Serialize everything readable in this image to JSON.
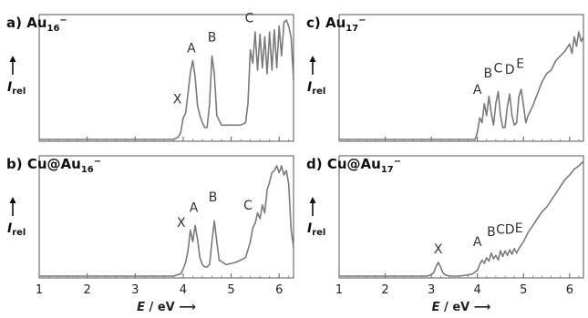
{
  "chart_data": [
    {
      "id": "a",
      "type": "line",
      "panel_label": "a)",
      "cluster_base": "Au",
      "cluster_sub": "16",
      "cluster_sup": "−",
      "ylabel": "I",
      "ylabel_sub": "rel",
      "xlim": [
        1,
        6.3
      ],
      "x_ticks": [
        "1",
        "2",
        "3",
        "4",
        "5",
        "6"
      ],
      "line_color": "#7a7a7a",
      "peak_labels": [
        {
          "text": "X",
          "x": 3.88,
          "y": 0.3
        },
        {
          "text": "A",
          "x": 4.17,
          "y": 0.73
        },
        {
          "text": "B",
          "x": 4.6,
          "y": 0.82
        },
        {
          "text": "C",
          "x": 5.38,
          "y": 0.98
        }
      ],
      "x": [
        1.0,
        3.8,
        3.9,
        3.95,
        4.0,
        4.05,
        4.1,
        4.15,
        4.2,
        4.25,
        4.3,
        4.35,
        4.4,
        4.45,
        4.5,
        4.55,
        4.6,
        4.65,
        4.7,
        4.8,
        5.0,
        5.2,
        5.3,
        5.35,
        5.4,
        5.45,
        5.5,
        5.55,
        5.6,
        5.65,
        5.7,
        5.75,
        5.8,
        5.85,
        5.9,
        5.95,
        6.0,
        6.05,
        6.1,
        6.15,
        6.2,
        6.25,
        6.3
      ],
      "y": [
        0.0,
        0.0,
        0.02,
        0.06,
        0.18,
        0.22,
        0.38,
        0.56,
        0.66,
        0.52,
        0.28,
        0.2,
        0.14,
        0.1,
        0.1,
        0.3,
        0.7,
        0.55,
        0.2,
        0.12,
        0.12,
        0.12,
        0.14,
        0.3,
        0.75,
        0.64,
        0.9,
        0.58,
        0.88,
        0.6,
        0.86,
        0.55,
        0.9,
        0.58,
        0.92,
        0.6,
        0.95,
        0.7,
        0.98,
        1.0,
        0.95,
        0.85,
        0.5
      ]
    },
    {
      "id": "b",
      "type": "line",
      "panel_label": "b)",
      "cluster_base": "Cu@Au",
      "cluster_sub": "16",
      "cluster_sup": "−",
      "ylabel": "I",
      "ylabel_sub": "rel",
      "xlim": [
        1,
        6.3
      ],
      "x_ticks": [
        "1",
        "2",
        "3",
        "4",
        "5",
        "6"
      ],
      "line_color": "#7a7a7a",
      "peak_labels": [
        {
          "text": "X",
          "x": 3.96,
          "y": 0.43
        },
        {
          "text": "A",
          "x": 4.22,
          "y": 0.56
        },
        {
          "text": "B",
          "x": 4.62,
          "y": 0.65
        },
        {
          "text": "C",
          "x": 5.35,
          "y": 0.58
        }
      ],
      "x": [
        1.0,
        3.8,
        3.95,
        4.0,
        4.05,
        4.1,
        4.15,
        4.2,
        4.25,
        4.3,
        4.35,
        4.4,
        4.45,
        4.5,
        4.55,
        4.6,
        4.65,
        4.7,
        4.75,
        4.9,
        5.1,
        5.3,
        5.4,
        5.45,
        5.5,
        5.55,
        5.6,
        5.65,
        5.7,
        5.75,
        5.8,
        5.85,
        5.9,
        5.95,
        6.0,
        6.05,
        6.1,
        6.15,
        6.2,
        6.25,
        6.3
      ],
      "y": [
        0.0,
        0.0,
        0.02,
        0.06,
        0.12,
        0.22,
        0.4,
        0.3,
        0.44,
        0.32,
        0.16,
        0.1,
        0.08,
        0.08,
        0.1,
        0.3,
        0.48,
        0.3,
        0.14,
        0.1,
        0.12,
        0.16,
        0.3,
        0.42,
        0.46,
        0.55,
        0.5,
        0.62,
        0.55,
        0.75,
        0.82,
        0.9,
        0.92,
        0.96,
        0.9,
        0.96,
        0.88,
        0.92,
        0.8,
        0.4,
        0.25
      ]
    },
    {
      "id": "c",
      "type": "line",
      "panel_label": "c)",
      "cluster_base": "Au",
      "cluster_sub": "17",
      "cluster_sup": "−",
      "ylabel": "I",
      "ylabel_sub": "rel",
      "xlim": [
        1,
        6.3
      ],
      "x_ticks": [
        "1",
        "2",
        "3",
        "4",
        "5",
        "6"
      ],
      "line_color": "#7a7a7a",
      "peak_labels": [
        {
          "text": "A",
          "x": 4.0,
          "y": 0.38
        },
        {
          "text": "B",
          "x": 4.23,
          "y": 0.52
        },
        {
          "text": "C",
          "x": 4.45,
          "y": 0.56
        },
        {
          "text": "D",
          "x": 4.7,
          "y": 0.55
        },
        {
          "text": "E",
          "x": 4.93,
          "y": 0.6
        }
      ],
      "x": [
        1.0,
        3.95,
        4.0,
        4.05,
        4.1,
        4.15,
        4.2,
        4.25,
        4.3,
        4.35,
        4.4,
        4.45,
        4.5,
        4.55,
        4.6,
        4.65,
        4.7,
        4.75,
        4.8,
        4.85,
        4.9,
        4.95,
        5.0,
        5.05,
        5.1,
        5.2,
        5.3,
        5.4,
        5.5,
        5.6,
        5.7,
        5.8,
        5.9,
        6.0,
        6.05,
        6.1,
        6.15,
        6.2,
        6.25,
        6.3
      ],
      "y": [
        0.0,
        0.0,
        0.06,
        0.18,
        0.14,
        0.3,
        0.2,
        0.36,
        0.22,
        0.12,
        0.3,
        0.4,
        0.2,
        0.1,
        0.1,
        0.28,
        0.38,
        0.2,
        0.12,
        0.14,
        0.36,
        0.42,
        0.28,
        0.14,
        0.2,
        0.28,
        0.38,
        0.48,
        0.55,
        0.58,
        0.66,
        0.7,
        0.74,
        0.8,
        0.72,
        0.86,
        0.78,
        0.9,
        0.82,
        0.86
      ]
    },
    {
      "id": "d",
      "type": "line",
      "panel_label": "d)",
      "cluster_base": "Cu@Au",
      "cluster_sub": "17",
      "cluster_sup": "−",
      "ylabel": "I",
      "ylabel_sub": "rel",
      "xlim": [
        1,
        6.3
      ],
      "x_ticks": [
        "1",
        "2",
        "3",
        "4",
        "5",
        "6"
      ],
      "xlabel_italic": "E",
      "xlabel_rest": " / eV ⟶",
      "line_color": "#7a7a7a",
      "peak_labels": [
        {
          "text": "X",
          "x": 3.15,
          "y": 0.2
        },
        {
          "text": "A",
          "x": 4.0,
          "y": 0.26
        },
        {
          "text": "B",
          "x": 4.3,
          "y": 0.35
        },
        {
          "text": "C",
          "x": 4.5,
          "y": 0.37
        },
        {
          "text": "D",
          "x": 4.7,
          "y": 0.37
        },
        {
          "text": "E",
          "x": 4.9,
          "y": 0.38
        }
      ],
      "x": [
        1.0,
        2.9,
        3.0,
        3.05,
        3.1,
        3.15,
        3.2,
        3.25,
        3.3,
        3.4,
        3.6,
        3.8,
        3.9,
        4.0,
        4.05,
        4.1,
        4.15,
        4.2,
        4.25,
        4.3,
        4.35,
        4.4,
        4.45,
        4.5,
        4.55,
        4.6,
        4.65,
        4.7,
        4.75,
        4.8,
        4.85,
        4.9,
        5.0,
        5.1,
        5.2,
        5.3,
        5.4,
        5.5,
        5.6,
        5.7,
        5.8,
        5.9,
        6.0,
        6.1,
        6.2,
        6.3
      ],
      "y": [
        0.0,
        0.0,
        0.01,
        0.03,
        0.08,
        0.12,
        0.08,
        0.03,
        0.01,
        0.0,
        0.0,
        0.01,
        0.02,
        0.05,
        0.1,
        0.14,
        0.11,
        0.16,
        0.13,
        0.2,
        0.15,
        0.18,
        0.14,
        0.22,
        0.17,
        0.22,
        0.18,
        0.23,
        0.19,
        0.24,
        0.2,
        0.24,
        0.3,
        0.38,
        0.44,
        0.5,
        0.56,
        0.6,
        0.66,
        0.72,
        0.78,
        0.84,
        0.88,
        0.93,
        0.96,
        1.0
      ]
    }
  ],
  "shared_xlabel_left": {
    "italic": "E",
    "rest": " / eV ⟶"
  }
}
